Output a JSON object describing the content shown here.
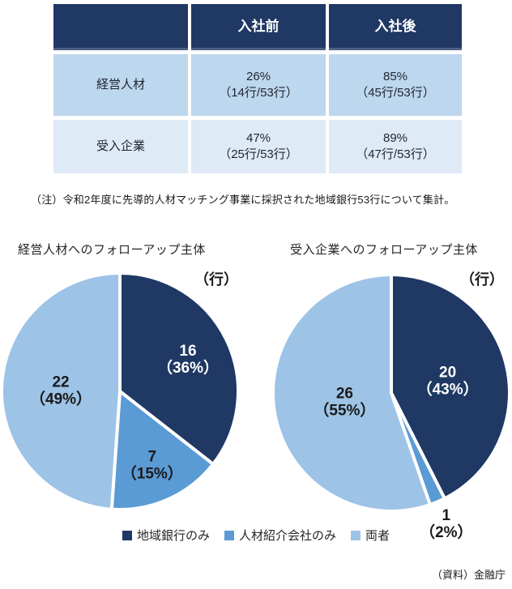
{
  "table": {
    "columns": [
      "",
      "入社前",
      "入社後"
    ],
    "header_bg": "#1F3864",
    "row_bg": [
      "#BDD7EE",
      "#DEEAF6"
    ],
    "rows": [
      {
        "label": "経営人材",
        "cells": [
          {
            "pct": "26%",
            "detail": "（14行/53行）"
          },
          {
            "pct": "85%",
            "detail": "（45行/53行）"
          }
        ]
      },
      {
        "label": "受入企業",
        "cells": [
          {
            "pct": "47%",
            "detail": "（25行/53行）"
          },
          {
            "pct": "89%",
            "detail": "（47行/53行）"
          }
        ]
      }
    ]
  },
  "note": "（注）令和2年度に先導的人材マッチング事業に採択された地域銀行53行について集計。",
  "chart_data": [
    {
      "type": "pie",
      "title": "経営人材へのフォローアップ主体",
      "unit_label": "（行）",
      "total": 45,
      "start_angle_deg": 0,
      "direction": "clockwise",
      "slices": [
        {
          "label": "地域銀行のみ",
          "value": 16,
          "pct": 36,
          "color": "#1F3864",
          "text_color": "#FFFFFF",
          "label_r": 0.64
        },
        {
          "label": "人材紹介会社のみ",
          "value": 7,
          "pct": 15,
          "color": "#5B9BD5",
          "text_color": "#1A1A1A",
          "label_r": 0.67
        },
        {
          "label": "両者",
          "value": 22,
          "pct": 49,
          "color": "#9DC3E6",
          "text_color": "#1A1A1A",
          "label_r": 0.5
        }
      ]
    },
    {
      "type": "pie",
      "title": "受入企業へのフォローアップ主体",
      "unit_label": "（行）",
      "total": 47,
      "start_angle_deg": 0,
      "direction": "clockwise",
      "slices": [
        {
          "label": "地域銀行のみ",
          "value": 20,
          "pct": 43,
          "color": "#1F3864",
          "text_color": "#FFFFFF",
          "label_r": 0.49
        },
        {
          "label": "人材紹介会社のみ",
          "value": 1,
          "pct": 2,
          "color": "#5B9BD5",
          "text_color": "#1A1A1A",
          "label_r": 1.19,
          "label_outside": true
        },
        {
          "label": "両者",
          "value": 26,
          "pct": 55,
          "color": "#9DC3E6",
          "text_color": "#1A1A1A",
          "label_r": 0.4
        }
      ]
    }
  ],
  "legend": {
    "items": [
      {
        "label": "地域銀行のみ",
        "color": "#1F3864"
      },
      {
        "label": "人材紹介会社のみ",
        "color": "#5B9BD5"
      },
      {
        "label": "両者",
        "color": "#9DC3E6"
      }
    ]
  },
  "source": "（資料）金融庁"
}
